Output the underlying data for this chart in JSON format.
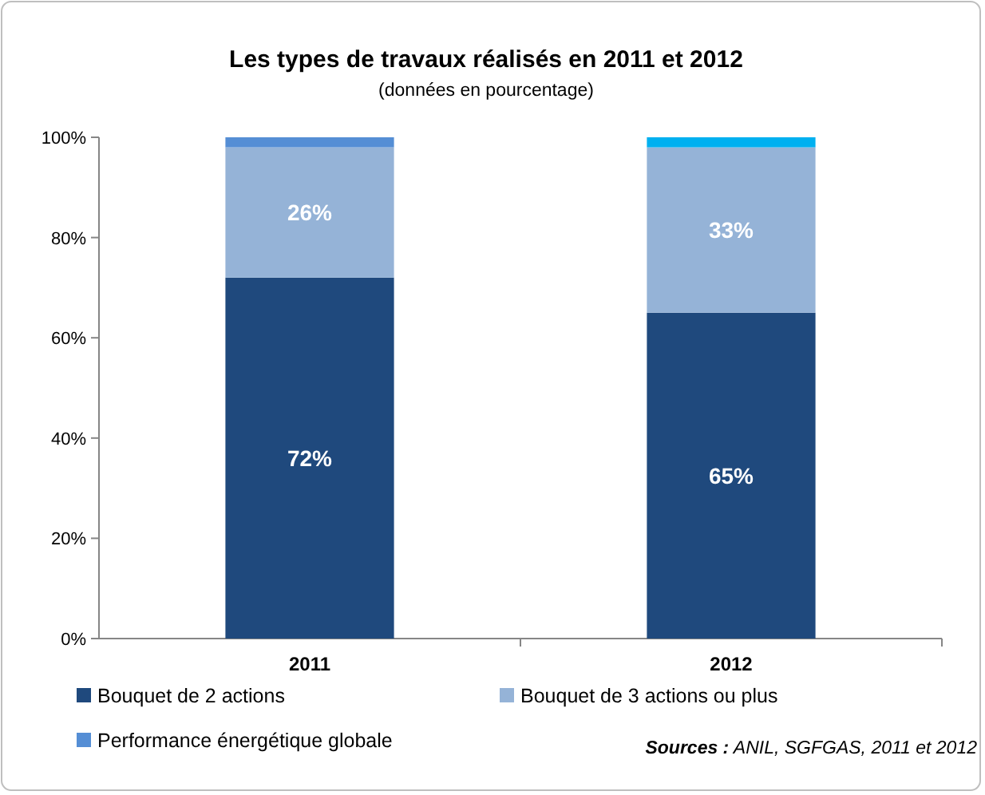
{
  "chart_data": {
    "type": "bar",
    "title": "Les types de travaux réalisés en 2011 et 2012",
    "subtitle": "(données en pourcentage)",
    "categories": [
      "2011",
      "2012"
    ],
    "stacked": true,
    "series": [
      {
        "name": "Bouquet de 2 actions",
        "color": "#1f497d",
        "values": [
          72,
          65
        ],
        "value_labels": [
          "72%",
          "65%"
        ]
      },
      {
        "name": "Bouquet de 3 actions ou plus",
        "color": "#95b3d7",
        "values": [
          26,
          33
        ],
        "value_labels": [
          "26%",
          "33%"
        ]
      },
      {
        "name": "Performance énergétique globale",
        "color": "#558ed5",
        "colors": [
          "#558ed5",
          "#00b0f0"
        ],
        "values": [
          2,
          2
        ]
      }
    ],
    "ylim": [
      0,
      100
    ],
    "yticks": [
      {
        "value": 0,
        "label": "0%"
      },
      {
        "value": 20,
        "label": "20%"
      },
      {
        "value": 40,
        "label": "40%"
      },
      {
        "value": 60,
        "label": "60%"
      },
      {
        "value": 80,
        "label": "80%"
      },
      {
        "value": 100,
        "label": "100%"
      }
    ],
    "legend": "bottom",
    "annotations": [
      "Sources : ANIL, SGFGAS, 2011 et 2012"
    ]
  }
}
